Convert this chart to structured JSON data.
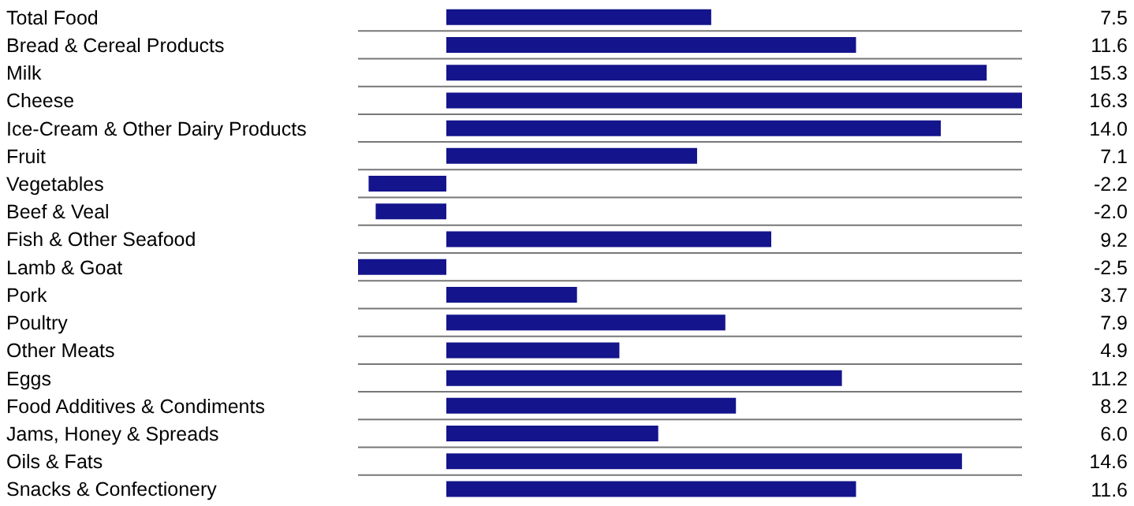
{
  "chart_data": {
    "type": "bar",
    "orientation": "horizontal",
    "categories": [
      "Total Food",
      "Bread & Cereal Products",
      "Milk",
      "Cheese",
      "Ice-Cream & Other Dairy Products",
      "Fruit",
      "Vegetables",
      "Beef & Veal",
      "Fish & Other Seafood",
      "Lamb & Goat",
      "Pork",
      "Poultry",
      "Other Meats",
      "Eggs",
      "Food Additives & Condiments",
      "Jams, Honey & Spreads",
      "Oils & Fats",
      "Snacks & Confectionery"
    ],
    "values": [
      7.5,
      11.6,
      15.3,
      16.3,
      14.0,
      7.1,
      -2.2,
      -2.0,
      9.2,
      -2.5,
      3.7,
      7.9,
      4.9,
      11.2,
      8.2,
      6.0,
      14.6,
      11.6
    ],
    "value_labels": [
      "7.5",
      "11.6",
      "15.3",
      "16.3",
      "14.0",
      "7.1",
      "-2.2",
      "-2.0",
      "9.2",
      "-2.5",
      "3.7",
      "7.9",
      "4.9",
      "11.2",
      "8.2",
      "6.0",
      "14.6",
      "11.6"
    ],
    "color": "#14148c",
    "grid": "y"
  }
}
